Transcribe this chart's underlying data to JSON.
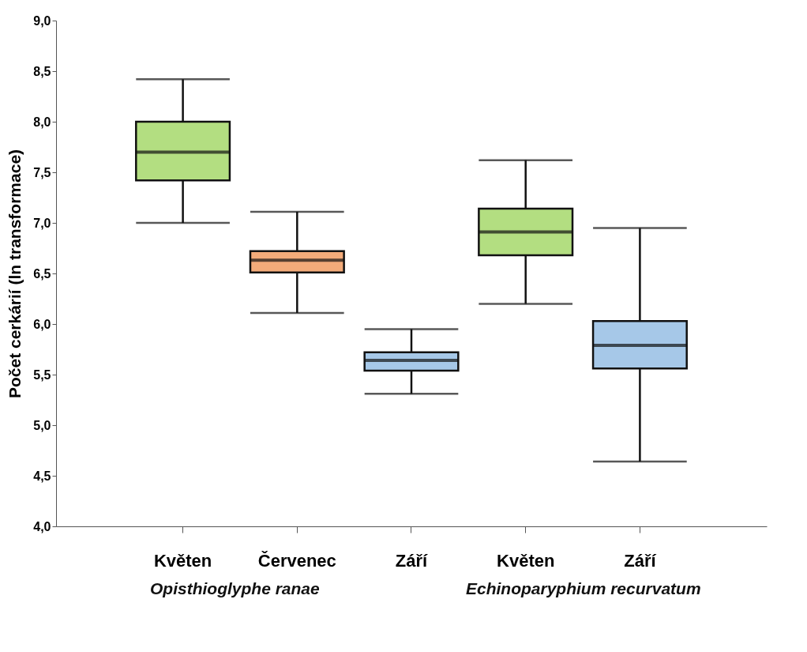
{
  "chart_data": {
    "type": "box",
    "ylabel": "Počet cerkárií (ln transformace)",
    "categories": [
      "Květen",
      "Červenec",
      "Září",
      "Květen",
      "Září"
    ],
    "colors": [
      "#b3de81",
      "#f3ab7a",
      "#a6c8e8",
      "#b3de81",
      "#a6c8e8"
    ],
    "boxes": [
      {
        "low": 7.0,
        "q1": 7.42,
        "median": 7.7,
        "q3": 8.0,
        "high": 8.42
      },
      {
        "low": 6.11,
        "q1": 6.51,
        "median": 6.63,
        "q3": 6.72,
        "high": 7.11
      },
      {
        "low": 5.31,
        "q1": 5.54,
        "median": 5.64,
        "q3": 5.72,
        "high": 5.95
      },
      {
        "low": 6.2,
        "q1": 6.68,
        "median": 6.91,
        "q3": 7.14,
        "high": 7.62
      },
      {
        "low": 4.64,
        "q1": 5.56,
        "median": 5.79,
        "q3": 6.03,
        "high": 6.95
      }
    ],
    "ylim": [
      4.0,
      9.0
    ],
    "yticks": [
      {
        "value": 4.0,
        "label": "4,0"
      },
      {
        "value": 4.5,
        "label": "4,5"
      },
      {
        "value": 5.0,
        "label": "5,0"
      },
      {
        "value": 5.5,
        "label": "5,5"
      },
      {
        "value": 6.0,
        "label": "6,0"
      },
      {
        "value": 6.5,
        "label": "6,5"
      },
      {
        "value": 7.0,
        "label": "7,0"
      },
      {
        "value": 7.5,
        "label": "7,5"
      },
      {
        "value": 8.0,
        "label": "8,0"
      },
      {
        "value": 8.5,
        "label": "8,5"
      },
      {
        "value": 9.0,
        "label": "9,0"
      }
    ],
    "grid": false,
    "legend": false,
    "annotations": [
      "Opisthioglyphe ranae",
      "Echinoparyphium recurvatum"
    ]
  }
}
